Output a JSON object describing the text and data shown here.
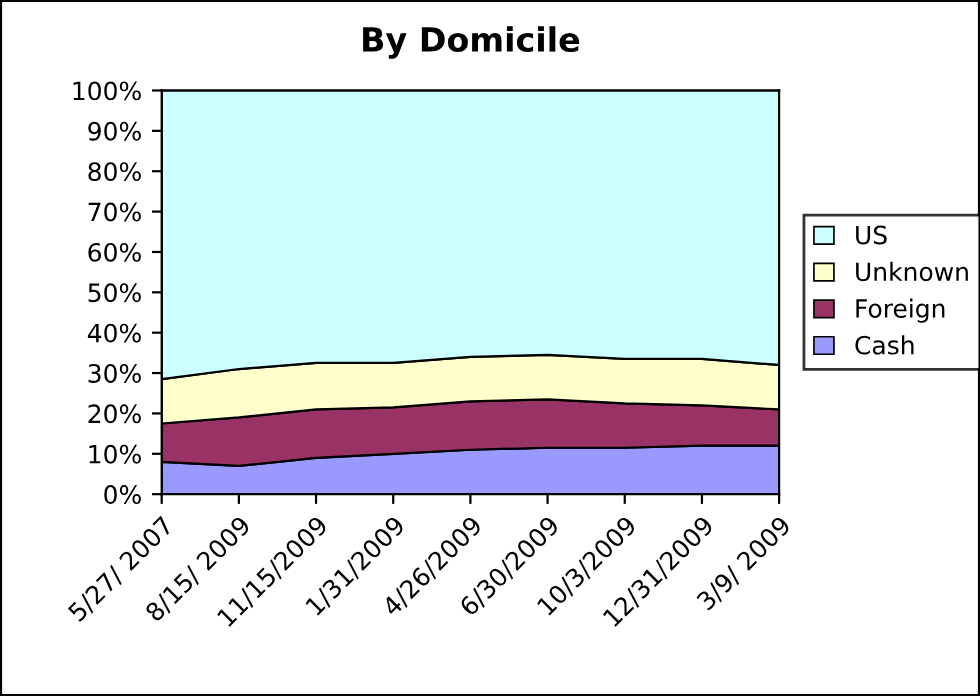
{
  "chart_data": {
    "type": "area",
    "title": "By Domicile",
    "stacked": true,
    "categories": [
      "5/27/ 2007",
      "8/15/ 2009",
      "11/15/2009",
      "1/31/2009",
      "4/26/2009",
      "6/30/2009",
      "10/3/2009",
      "12/31/2009",
      "3/9/ 2009"
    ],
    "series": [
      {
        "name": "Cash",
        "color": "#9999ff",
        "values": [
          8,
          7,
          9,
          10,
          11,
          11.5,
          11.5,
          12,
          12
        ]
      },
      {
        "name": "Foreign",
        "color": "#993366",
        "values": [
          9.5,
          12,
          12,
          11.5,
          12,
          12,
          11,
          10,
          9
        ]
      },
      {
        "name": "Unknown",
        "color": "#ffffcc",
        "values": [
          11,
          12,
          11.5,
          11,
          11,
          11,
          11,
          11.5,
          11
        ]
      },
      {
        "name": "US",
        "color": "#ccffff",
        "values": [
          71.5,
          69,
          67.5,
          67.5,
          66,
          65.5,
          66.5,
          66.5,
          68
        ]
      }
    ],
    "ylim": [
      0,
      100
    ],
    "yticks": [
      {
        "value": 0,
        "label": "0%"
      },
      {
        "value": 10,
        "label": "10%"
      },
      {
        "value": 20,
        "label": "20%"
      },
      {
        "value": 30,
        "label": "30%"
      },
      {
        "value": 40,
        "label": "40%"
      },
      {
        "value": 50,
        "label": "50%"
      },
      {
        "value": 60,
        "label": "60%"
      },
      {
        "value": 70,
        "label": "70%"
      },
      {
        "value": 80,
        "label": "80%"
      },
      {
        "value": 90,
        "label": "90%"
      },
      {
        "value": 100,
        "label": "100%"
      }
    ],
    "legend": "right",
    "grid": false
  }
}
